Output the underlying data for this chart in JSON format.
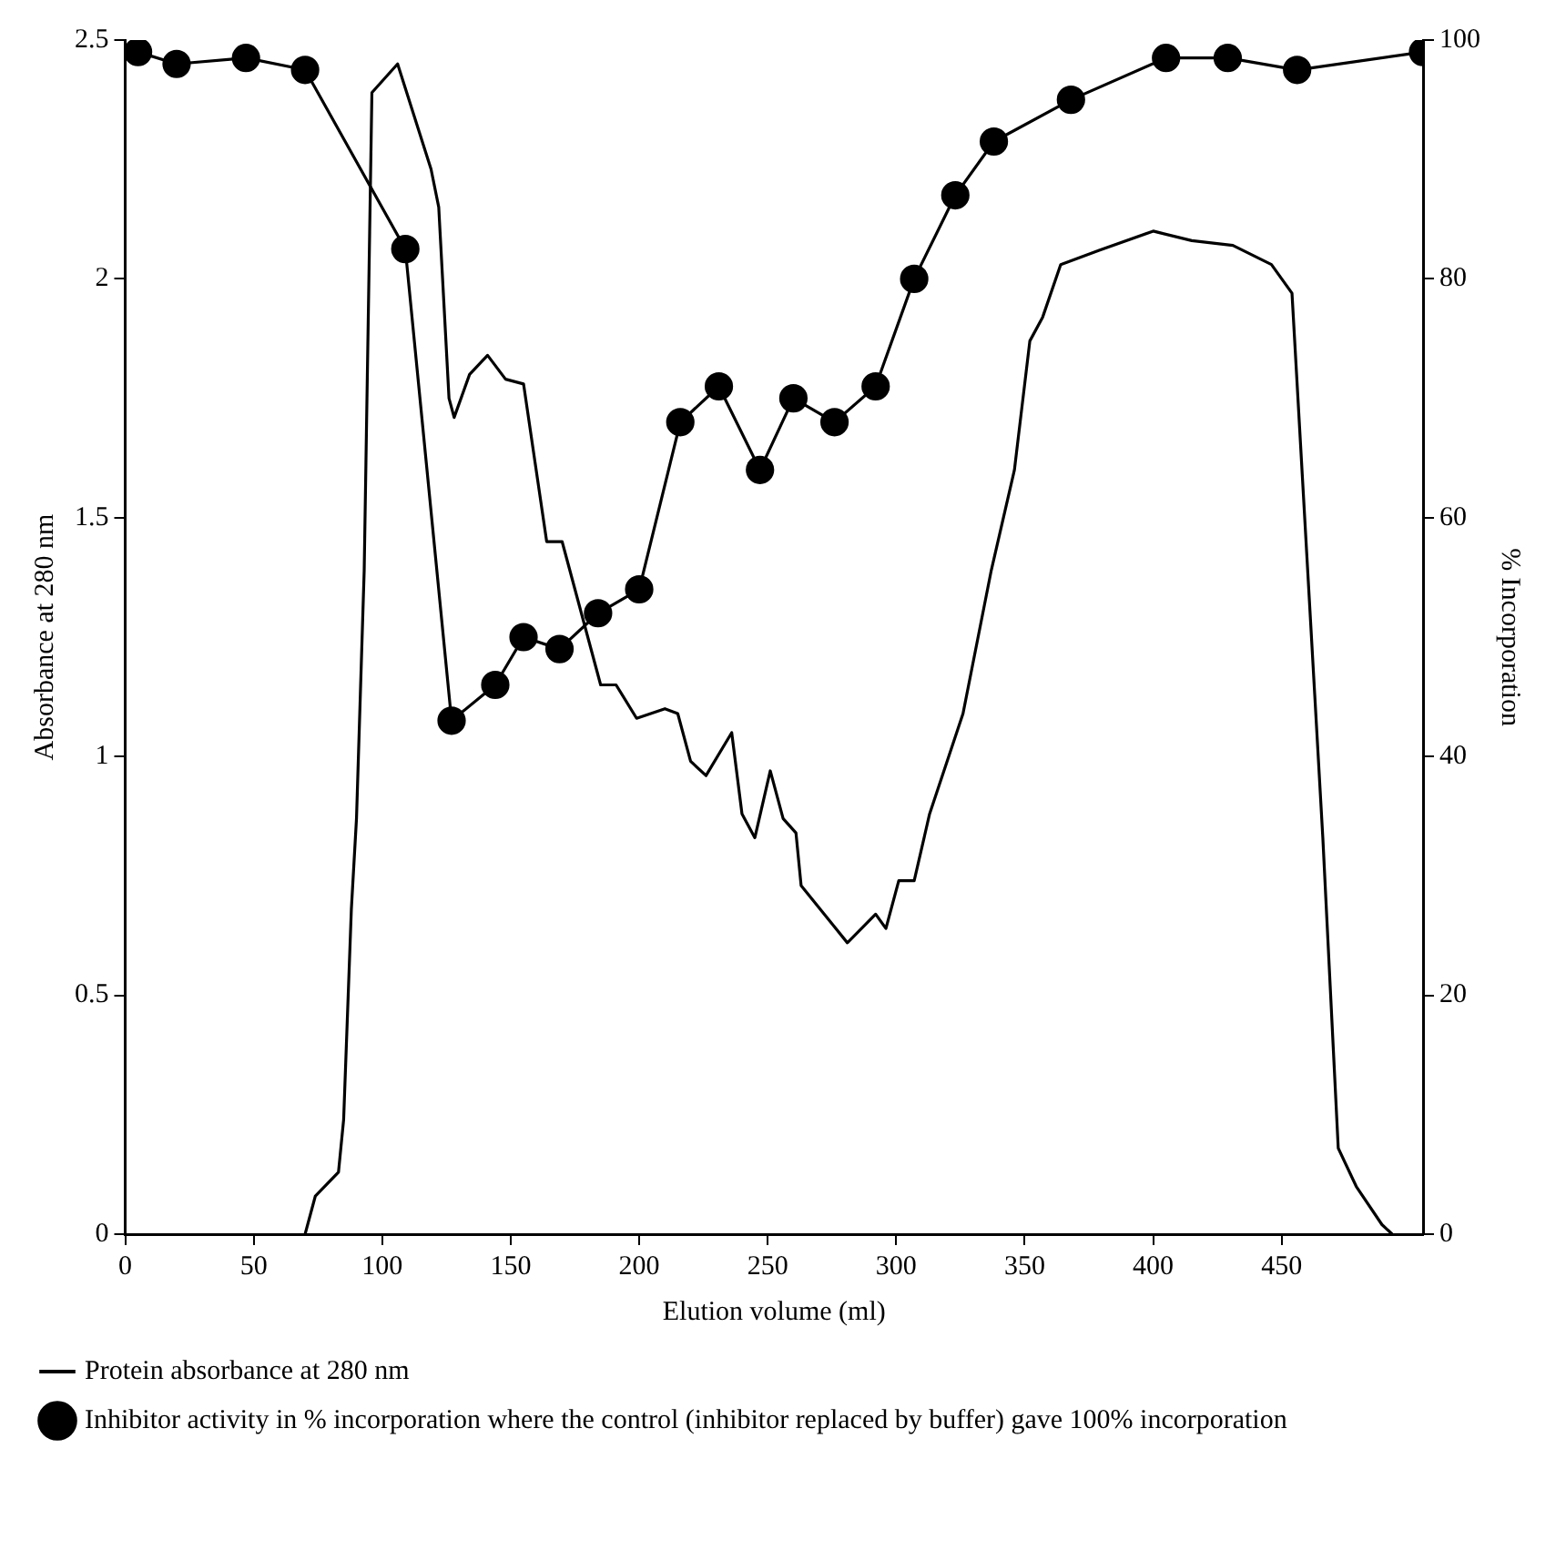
{
  "chart_data": {
    "type": "line",
    "xlabel": "Elution volume (ml)",
    "ylabel": "Absorbance at 280 nm",
    "y2label": "% Incorporation",
    "xlim": [
      0,
      505
    ],
    "xticks": [
      0,
      50,
      100,
      150,
      200,
      250,
      300,
      350,
      400,
      450
    ],
    "ylim": [
      0,
      2.5
    ],
    "yticks": [
      0,
      0.5,
      1.0,
      1.5,
      2.0,
      2.5
    ],
    "y2lim": [
      0,
      100
    ],
    "y2ticks": [
      0,
      20,
      40,
      60,
      80,
      100
    ],
    "grid": false,
    "legend": "bottom",
    "series": [
      {
        "name": "Protein absorbance at 280 nm",
        "color": "#000000",
        "marker": "none",
        "axis": "y",
        "x": [
          70,
          74,
          83,
          85,
          88,
          90,
          93,
          96,
          106,
          119,
          122,
          126,
          128,
          134,
          141,
          148,
          155,
          164,
          170,
          179,
          185,
          191,
          199,
          210,
          215,
          220,
          226,
          236,
          240,
          245,
          251,
          256,
          261,
          263,
          281,
          292,
          296,
          301,
          307,
          313,
          326,
          337,
          346,
          352,
          357,
          364,
          379,
          400,
          415,
          431,
          446,
          454,
          458,
          466,
          472,
          479,
          489,
          493
        ],
        "values": [
          0,
          0.08,
          0.13,
          0.24,
          0.68,
          0.87,
          1.39,
          2.39,
          2.45,
          2.23,
          2.15,
          1.75,
          1.71,
          1.8,
          1.84,
          1.79,
          1.78,
          1.45,
          1.45,
          1.27,
          1.15,
          1.15,
          1.08,
          1.1,
          1.09,
          0.99,
          0.96,
          1.05,
          0.88,
          0.83,
          0.97,
          0.87,
          0.84,
          0.73,
          0.61,
          0.67,
          0.64,
          0.74,
          0.74,
          0.88,
          1.09,
          1.39,
          1.6,
          1.87,
          1.92,
          2.03,
          2.06,
          2.1,
          2.08,
          2.07,
          2.03,
          1.97,
          1.59,
          0.83,
          0.18,
          0.1,
          0.02,
          0
        ]
      },
      {
        "name": "Inhibitor activity in % incorporation where the control (inhibitor replaced by buffer) gave 100% incorporation",
        "color": "#000000",
        "marker": "circle",
        "axis": "y2",
        "x": [
          5,
          20,
          47,
          70,
          109,
          127,
          144,
          155,
          169,
          184,
          200,
          216,
          231,
          247,
          260,
          276,
          292,
          307,
          323,
          338,
          368,
          405,
          429,
          456,
          505
        ],
        "values": [
          99,
          98,
          98.5,
          97.5,
          82.5,
          43,
          46,
          50,
          49,
          52,
          54,
          68,
          71,
          64,
          70,
          68,
          71,
          80,
          87,
          91.5,
          95,
          98.5,
          98.5,
          97.5,
          99
        ]
      }
    ]
  }
}
